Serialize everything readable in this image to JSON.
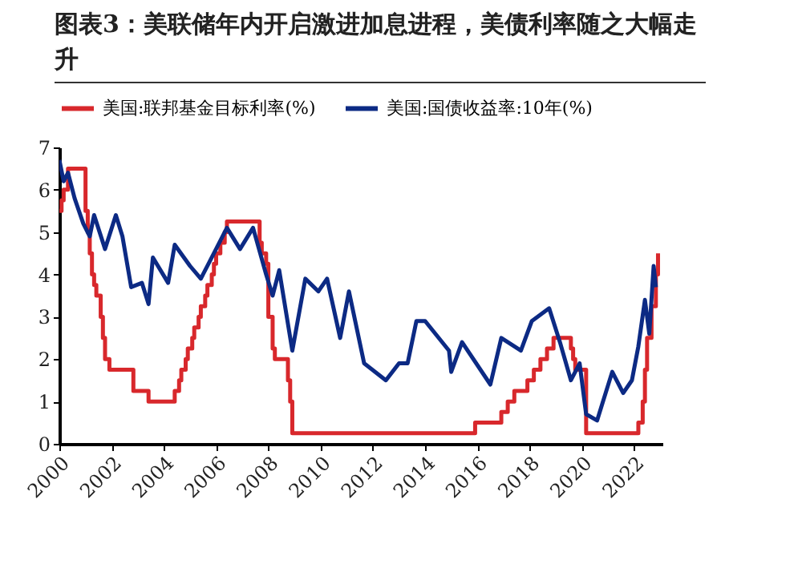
{
  "chart_data": {
    "type": "line",
    "title": "图表3：美联储年内开启激进加息进程，美债利率随之大幅走升",
    "legend": "top",
    "grid": false,
    "ylim": [
      0,
      7
    ],
    "yticks": [
      0,
      1,
      2,
      3,
      4,
      5,
      6,
      7
    ],
    "xlim": [
      "2000-01",
      "2023-02"
    ],
    "xticks": [
      {
        "value": "2000",
        "label": "2000"
      },
      {
        "value": "2002",
        "label": "2002"
      },
      {
        "value": "2004",
        "label": "2004"
      },
      {
        "value": "2006",
        "label": "2006"
      },
      {
        "value": "2008",
        "label": "2008"
      },
      {
        "value": "2010",
        "label": "2010"
      },
      {
        "value": "2012",
        "label": "2012"
      },
      {
        "value": "2014",
        "label": "2014"
      },
      {
        "value": "2016",
        "label": "2016"
      },
      {
        "value": "2018",
        "label": "2018"
      },
      {
        "value": "2020",
        "label": "2020"
      },
      {
        "value": "2022",
        "label": "2022"
      }
    ],
    "series": [
      {
        "name": "美国:联邦基金目标利率(%)",
        "type": "step",
        "color": "#d8282c",
        "x": [
          "2000-01",
          "2000-02",
          "2000-03",
          "2000-05",
          "2001-01",
          "2001-02",
          "2001-03",
          "2001-04",
          "2001-05",
          "2001-06",
          "2001-08",
          "2001-09",
          "2001-10",
          "2001-11",
          "2001-12",
          "2002-11",
          "2003-06",
          "2004-06",
          "2004-08",
          "2004-09",
          "2004-11",
          "2004-12",
          "2005-02",
          "2005-03",
          "2005-05",
          "2005-06",
          "2005-08",
          "2005-09",
          "2005-11",
          "2005-12",
          "2006-01",
          "2006-03",
          "2006-05",
          "2006-06",
          "2007-09",
          "2007-10",
          "2007-12",
          "2008-01",
          "2008-03",
          "2008-04",
          "2008-10",
          "2008-11",
          "2008-12",
          "2015-12",
          "2016-12",
          "2017-03",
          "2017-06",
          "2017-12",
          "2018-03",
          "2018-06",
          "2018-09",
          "2018-12",
          "2019-08",
          "2019-09",
          "2019-10",
          "2020-03",
          "2022-03",
          "2022-05",
          "2022-06",
          "2022-07",
          "2022-09",
          "2022-11",
          "2022-12"
        ],
        "values": [
          5.5,
          5.75,
          6.0,
          6.5,
          5.5,
          5.0,
          4.5,
          4.0,
          3.75,
          3.5,
          3.0,
          2.5,
          2.0,
          2.0,
          1.75,
          1.25,
          1.0,
          1.25,
          1.5,
          1.75,
          2.0,
          2.25,
          2.5,
          2.75,
          3.0,
          3.25,
          3.5,
          3.75,
          4.0,
          4.25,
          4.5,
          4.75,
          5.0,
          5.25,
          4.75,
          4.5,
          4.25,
          3.0,
          2.25,
          2.0,
          1.5,
          1.0,
          0.25,
          0.5,
          0.75,
          1.0,
          1.25,
          1.5,
          1.75,
          2.0,
          2.25,
          2.5,
          2.25,
          2.0,
          1.75,
          0.25,
          0.5,
          1.0,
          1.75,
          2.5,
          3.25,
          4.0,
          4.5
        ]
      },
      {
        "name": "美国:国债收益率:10年(%)",
        "type": "line",
        "color": "#0c2a84",
        "x": [
          "2000-01",
          "2000-03",
          "2000-05",
          "2000-08",
          "2000-12",
          "2001-03",
          "2001-05",
          "2001-10",
          "2002-03",
          "2002-06",
          "2002-10",
          "2003-03",
          "2003-06",
          "2003-08",
          "2004-03",
          "2004-06",
          "2005-01",
          "2005-06",
          "2005-12",
          "2006-06",
          "2006-12",
          "2007-06",
          "2007-12",
          "2008-03",
          "2008-06",
          "2008-12",
          "2009-06",
          "2009-12",
          "2010-04",
          "2010-10",
          "2011-02",
          "2011-09",
          "2012-07",
          "2013-01",
          "2013-05",
          "2013-09",
          "2014-01",
          "2014-12",
          "2015-01",
          "2015-06",
          "2016-07",
          "2016-12",
          "2017-09",
          "2018-02",
          "2018-10",
          "2019-03",
          "2019-08",
          "2019-12",
          "2020-03",
          "2020-08",
          "2021-03",
          "2021-08",
          "2021-12",
          "2022-03",
          "2022-06",
          "2022-08",
          "2022-10",
          "2022-11"
        ],
        "values": [
          6.7,
          6.2,
          6.4,
          5.8,
          5.2,
          4.9,
          5.4,
          4.6,
          5.4,
          4.9,
          3.7,
          3.8,
          3.3,
          4.4,
          3.8,
          4.7,
          4.2,
          3.9,
          4.5,
          5.1,
          4.6,
          5.1,
          4.0,
          3.5,
          4.1,
          2.2,
          3.9,
          3.6,
          3.9,
          2.5,
          3.6,
          1.9,
          1.5,
          1.9,
          1.9,
          2.9,
          2.9,
          2.2,
          1.7,
          2.4,
          1.4,
          2.5,
          2.2,
          2.9,
          3.2,
          2.4,
          1.5,
          1.9,
          0.7,
          0.55,
          1.7,
          1.2,
          1.5,
          2.3,
          3.4,
          2.6,
          4.2,
          3.7
        ]
      }
    ]
  }
}
